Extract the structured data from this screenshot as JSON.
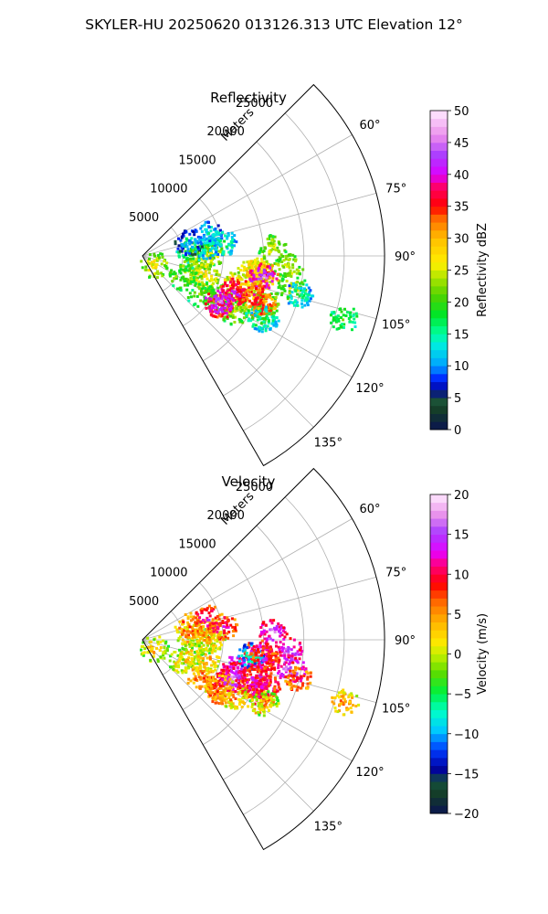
{
  "figure": {
    "suptitle": "SKYLER-HU  20250620  013126.313 UTC Elevation 12°"
  },
  "chart_data": [
    {
      "type": "polar-sector-ppi",
      "title": "Reflectivity",
      "radial_label": "Meters",
      "radial_ticks": [
        5000,
        10000,
        15000,
        20000,
        25000
      ],
      "radial_tick_labels": [
        "5000",
        "10000",
        "15000",
        "20000",
        "25000"
      ],
      "rlim": [
        0,
        30000
      ],
      "theta_range_deg": [
        45,
        150
      ],
      "theta_ticks_deg": [
        60,
        75,
        90,
        105,
        120,
        135
      ],
      "theta_tick_labels": [
        "60°",
        "75°",
        "90°",
        "105°",
        "120°",
        "135°"
      ],
      "grid": true,
      "colorbar": {
        "label": "Reflectivity dBZ",
        "range": [
          0,
          50
        ],
        "ticks": [
          0,
          5,
          10,
          15,
          20,
          25,
          30,
          35,
          40,
          45,
          50
        ],
        "tick_labels": [
          "0",
          "5",
          "10",
          "15",
          "20",
          "25",
          "30",
          "35",
          "40",
          "45",
          "50"
        ]
      },
      "echoes": [
        {
          "az": 91,
          "r": 7200,
          "v": 22
        },
        {
          "az": 88,
          "r": 8300,
          "v": 24
        },
        {
          "az": 82,
          "r": 5900,
          "v": 18
        },
        {
          "az": 80,
          "r": 8000,
          "v": 13
        },
        {
          "az": 106,
          "r": 6200,
          "v": 23
        },
        {
          "az": 108,
          "r": 8000,
          "v": 26
        },
        {
          "az": 117,
          "r": 5500,
          "v": 21
        },
        {
          "az": 127,
          "r": 1650,
          "v": 24
        },
        {
          "az": 72,
          "r": 6000,
          "v": 9
        },
        {
          "az": 71,
          "r": 8500,
          "v": 12
        },
        {
          "az": 101,
          "r": 18700,
          "v": 22
        },
        {
          "az": 98,
          "r": 14700,
          "v": 27
        },
        {
          "az": 94,
          "r": 18000,
          "v": 23
        },
        {
          "az": 86,
          "r": 16000,
          "v": 22
        },
        {
          "az": 107,
          "r": 11900,
          "v": 27
        },
        {
          "az": 113,
          "r": 14300,
          "v": 25
        },
        {
          "az": 119,
          "r": 10500,
          "v": 23
        },
        {
          "az": 121,
          "r": 13200,
          "v": 22
        },
        {
          "az": 117,
          "r": 16200,
          "v": 18
        },
        {
          "az": 110,
          "r": 16200,
          "v": 22
        },
        {
          "az": 123,
          "r": 8600,
          "v": 20
        },
        {
          "az": 96,
          "r": 14300,
          "v": 26
        },
        {
          "az": 99,
          "r": 15200,
          "v": 32
        },
        {
          "az": 110,
          "r": 12200,
          "v": 37
        },
        {
          "az": 123,
          "r": 11300,
          "v": 36
        },
        {
          "az": 112,
          "r": 15700,
          "v": 34
        },
        {
          "az": 98,
          "r": 13500,
          "v": 29
        },
        {
          "az": 99,
          "r": 15000,
          "v": 41
        },
        {
          "az": 113,
          "r": 11900,
          "v": 38
        },
        {
          "az": 121,
          "r": 10900,
          "v": 41
        },
        {
          "az": 109,
          "r": 14700,
          "v": 34
        },
        {
          "az": 80,
          "r": 10000,
          "v": 14
        },
        {
          "az": 104,
          "r": 19800,
          "v": 14
        },
        {
          "az": 117,
          "r": 16800,
          "v": 15
        },
        {
          "az": 107,
          "r": 26000,
          "v": 18
        }
      ]
    },
    {
      "type": "polar-sector-ppi",
      "title": "Velocity",
      "radial_label": "Meters",
      "radial_ticks": [
        5000,
        10000,
        15000,
        20000,
        25000
      ],
      "radial_tick_labels": [
        "5000",
        "10000",
        "15000",
        "20000",
        "25000"
      ],
      "rlim": [
        0,
        30000
      ],
      "theta_range_deg": [
        45,
        150
      ],
      "theta_ticks_deg": [
        60,
        75,
        90,
        105,
        120,
        135
      ],
      "theta_tick_labels": [
        "60°",
        "75°",
        "90°",
        "105°",
        "120°",
        "135°"
      ],
      "grid": true,
      "colorbar": {
        "label": "Velocity (m/s)",
        "range": [
          -20,
          20
        ],
        "ticks": [
          -20,
          -15,
          -10,
          -5,
          0,
          5,
          10,
          15,
          20
        ],
        "tick_labels": [
          "−20",
          "−15",
          "−10",
          "−5",
          "0",
          "5",
          "10",
          "15",
          "20"
        ]
      },
      "echoes": [
        {
          "az": 91,
          "r": 7200,
          "v": 0
        },
        {
          "az": 88,
          "r": 8300,
          "v": 2
        },
        {
          "az": 82,
          "r": 5900,
          "v": 3
        },
        {
          "az": 80,
          "r": 8000,
          "v": 5
        },
        {
          "az": 106,
          "r": 6200,
          "v": 1
        },
        {
          "az": 108,
          "r": 8000,
          "v": 3
        },
        {
          "az": 117,
          "r": 5500,
          "v": 2
        },
        {
          "az": 127,
          "r": 1650,
          "v": 1
        },
        {
          "az": 72,
          "r": 6000,
          "v": 6
        },
        {
          "az": 71,
          "r": 8500,
          "v": 10
        },
        {
          "az": 101,
          "r": 18700,
          "v": 14
        },
        {
          "az": 98,
          "r": 14700,
          "v": 12
        },
        {
          "az": 94,
          "r": 18000,
          "v": 13
        },
        {
          "az": 86,
          "r": 16000,
          "v": 13
        },
        {
          "az": 107,
          "r": 11900,
          "v": 14
        },
        {
          "az": 113,
          "r": 14300,
          "v": 9
        },
        {
          "az": 119,
          "r": 10500,
          "v": 7
        },
        {
          "az": 121,
          "r": 13200,
          "v": 3
        },
        {
          "az": 117,
          "r": 16200,
          "v": 6
        },
        {
          "az": 110,
          "r": 16200,
          "v": 10
        },
        {
          "az": 123,
          "r": 8600,
          "v": 5
        },
        {
          "az": 96,
          "r": 14300,
          "v": 11
        },
        {
          "az": 99,
          "r": 15200,
          "v": 10
        },
        {
          "az": 110,
          "r": 12200,
          "v": 12
        },
        {
          "az": 123,
          "r": 11300,
          "v": 8
        },
        {
          "az": 112,
          "r": 15700,
          "v": 11
        },
        {
          "az": 98,
          "r": 13500,
          "v": -9
        },
        {
          "az": 99,
          "r": 15000,
          "v": 9
        },
        {
          "az": 113,
          "r": 11900,
          "v": 13
        },
        {
          "az": 121,
          "r": 10900,
          "v": 6
        },
        {
          "az": 109,
          "r": 14700,
          "v": 11
        },
        {
          "az": 80,
          "r": 10000,
          "v": 9
        },
        {
          "az": 104,
          "r": 19800,
          "v": 8
        },
        {
          "az": 117,
          "r": 16800,
          "v": 1
        },
        {
          "az": 107,
          "r": 26000,
          "v": 4
        }
      ]
    }
  ]
}
